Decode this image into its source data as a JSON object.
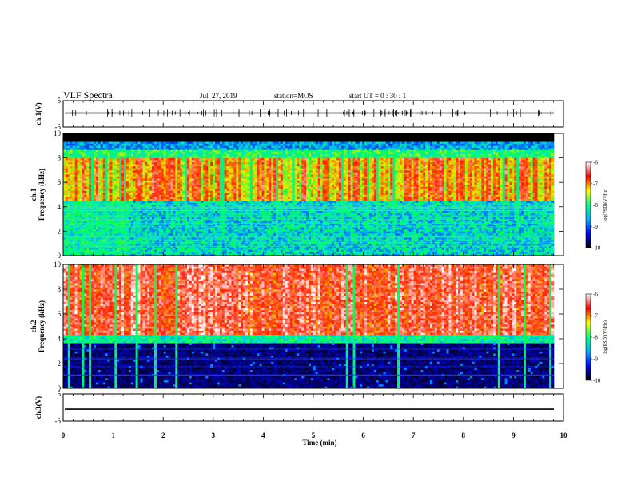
{
  "header": {
    "title": "VLF Spectra",
    "date": "Jul. 27, 2019",
    "station": "station=MOS",
    "start": "start UT =  0 : 30 : 1"
  },
  "chart_data": [
    {
      "type": "line",
      "panel": "ch1-waveform",
      "ylabel": "ch.1(V)",
      "ylim": [
        -5,
        5
      ],
      "yticks": [
        "5",
        "-5"
      ],
      "xlim": [
        0,
        10
      ],
      "series_color": "#000000"
    },
    {
      "type": "heatmap",
      "panel": "ch1-spectrogram",
      "ylabel_line1": "ch.1",
      "ylabel_line2": "Frequency (kHz)",
      "ylim": [
        0,
        10
      ],
      "yticks": [
        "0",
        "2",
        "4",
        "6",
        "8",
        "10"
      ],
      "xlim": [
        0,
        10
      ],
      "colorbar": {
        "label": "log(PSD)(V²/Hz)",
        "range": [
          -10,
          -6
        ],
        "ticks": [
          "-6",
          "-7",
          "-8",
          "-9",
          "-10"
        ],
        "colors": [
          "#000000",
          "#0000ff",
          "#00b0ff",
          "#00ff80",
          "#ffff00",
          "#ff0000",
          "#ffffff"
        ]
      }
    },
    {
      "type": "heatmap",
      "panel": "ch2-spectrogram",
      "ylabel_line1": "ch.2",
      "ylabel_line2": "Frequency (kHz)",
      "ylim": [
        0,
        10
      ],
      "yticks": [
        "0",
        "2",
        "4",
        "6",
        "8",
        "10"
      ],
      "xlim": [
        0,
        10
      ],
      "colorbar": {
        "label": "log(PSD)(V²/Hz)",
        "range": [
          -10,
          -6
        ],
        "ticks": [
          "-6",
          "-7",
          "-8",
          "-9",
          "-10"
        ],
        "colors": [
          "#000000",
          "#0000ff",
          "#00b0ff",
          "#00ff80",
          "#ffff00",
          "#ff0000",
          "#ffffff"
        ]
      }
    },
    {
      "type": "line",
      "panel": "ch3-waveform",
      "ylabel": "ch.3(V)",
      "ylim": [
        -5,
        5
      ],
      "yticks": [
        "5",
        "-5"
      ],
      "xlim": [
        0,
        10
      ],
      "xlabel": "Time (min)",
      "xticks": [
        "0",
        "1",
        "2",
        "3",
        "4",
        "5",
        "6",
        "7",
        "8",
        "9",
        "10"
      ],
      "series_color": "#000000"
    }
  ]
}
